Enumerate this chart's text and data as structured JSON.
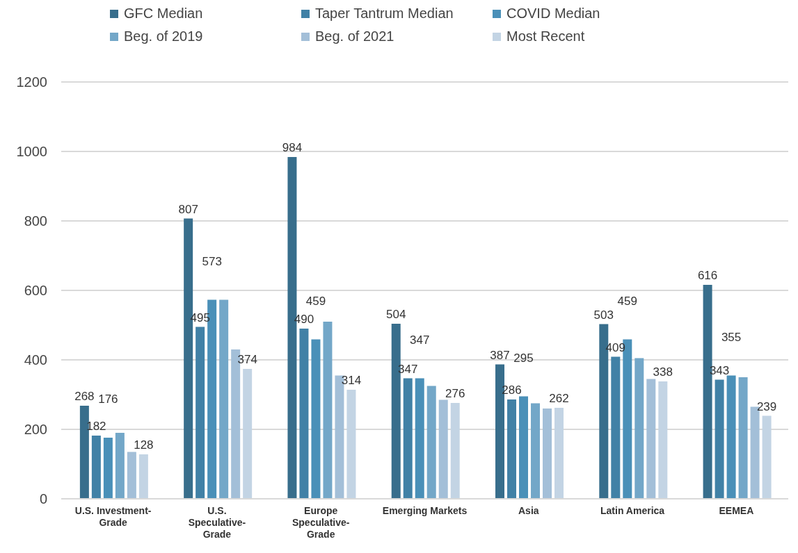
{
  "chart_data": {
    "type": "bar",
    "categories": [
      "U.S. Investment-Grade",
      "U.S. Speculative-Grade",
      "Europe Speculative-Grade",
      "Emerging Markets",
      "Asia",
      "Latin America",
      "EEMEA"
    ],
    "series": [
      {
        "name": "GFC Median",
        "color": "#386e8c",
        "values": [
          268,
          807,
          984,
          504,
          387,
          503,
          616
        ],
        "value_labels": [
          "268",
          "807",
          "984",
          "504",
          "387",
          "503",
          "616"
        ]
      },
      {
        "name": "Taper Tantrum Median",
        "color": "#4181a6",
        "values": [
          182,
          495,
          490,
          347,
          286,
          409,
          343
        ],
        "value_labels": [
          "182",
          "495",
          "490",
          "347",
          "286",
          "409",
          "343"
        ]
      },
      {
        "name": "COVID Median",
        "color": "#4a90b8",
        "values": [
          176,
          573,
          459,
          347,
          295,
          459,
          355
        ],
        "value_labels": [
          "176",
          "573",
          "459",
          "347",
          "295",
          "459",
          "355"
        ]
      },
      {
        "name": "Beg. of 2019",
        "color": "#73a7c8",
        "values": [
          190,
          573,
          510,
          325,
          275,
          405,
          350
        ]
      },
      {
        "name": "Beg. of 2021",
        "color": "#a3bfd8",
        "values": [
          135,
          430,
          355,
          285,
          260,
          345,
          265
        ]
      },
      {
        "name": "Most Recent",
        "color": "#c3d4e4",
        "values": [
          128,
          374,
          314,
          276,
          262,
          338,
          239
        ],
        "value_labels": [
          "128",
          "374",
          "314",
          "276",
          "262",
          "338",
          "239"
        ]
      }
    ],
    "ylim": [
      0,
      1200
    ],
    "yticks": [
      0,
      200,
      400,
      600,
      800,
      1000,
      1200
    ],
    "grid": "y",
    "legend": "top"
  }
}
